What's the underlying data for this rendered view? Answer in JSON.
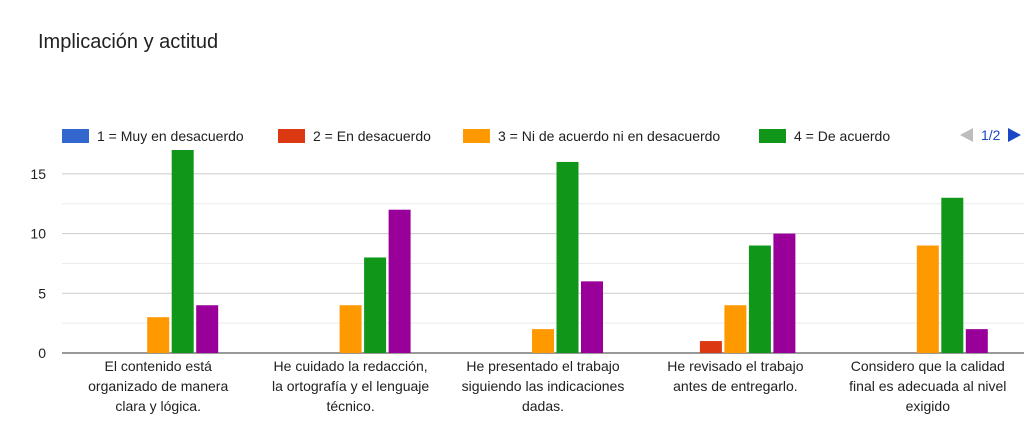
{
  "title": "Implicación y actitud",
  "legend": {
    "items": [
      {
        "label": "1 = Muy en desacuerdo",
        "color": "#3366cc"
      },
      {
        "label": "2 = En desacuerdo",
        "color": "#dc3912"
      },
      {
        "label": "3 = Ni de acuerdo ni en desacuerdo",
        "color": "#ff9900"
      },
      {
        "label": "4 = De acuerdo",
        "color": "#109618"
      }
    ],
    "page": "1/2"
  },
  "chart_data": {
    "type": "bar",
    "title": "Implicación y actitud",
    "xlabel": "",
    "ylabel": "",
    "ylim": [
      0,
      17
    ],
    "yticks": [
      0,
      5,
      10,
      15
    ],
    "grid": true,
    "legend_position": "top",
    "categories": [
      [
        "El contenido está",
        "organizado de manera",
        "clara y lógica."
      ],
      [
        "He cuidado la redacción,",
        "la ortografía y el lenguaje",
        "técnico."
      ],
      [
        "He presentado el trabajo",
        "siguiendo las indicaciones",
        "dadas."
      ],
      [
        "He revisado el trabajo",
        "antes de entregarlo."
      ],
      [
        "Considero que la calidad",
        "final es adecuada al nivel",
        "exigido"
      ]
    ],
    "series": [
      {
        "name": "1 = Muy en desacuerdo",
        "color": "#3366cc",
        "values": [
          0,
          0,
          0,
          0,
          0
        ]
      },
      {
        "name": "2 = En desacuerdo",
        "color": "#dc3912",
        "values": [
          0,
          0,
          0,
          1,
          0
        ]
      },
      {
        "name": "3 = Ni de acuerdo ni en desacuerdo",
        "color": "#ff9900",
        "values": [
          3,
          4,
          2,
          4,
          9
        ]
      },
      {
        "name": "4 = De acuerdo",
        "color": "#109618",
        "values": [
          17,
          8,
          16,
          9,
          13
        ]
      },
      {
        "color": "#990099",
        "values": [
          4,
          12,
          6,
          10,
          2
        ]
      }
    ]
  }
}
